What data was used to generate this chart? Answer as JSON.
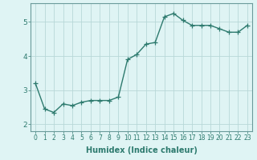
{
  "xlabel": "Humidex (Indice chaleur)",
  "ylabel": "",
  "x": [
    0,
    1,
    2,
    3,
    4,
    5,
    6,
    7,
    8,
    9,
    10,
    11,
    12,
    13,
    14,
    15,
    16,
    17,
    18,
    19,
    20,
    21,
    22,
    23
  ],
  "y": [
    3.2,
    2.45,
    2.35,
    2.6,
    2.55,
    2.65,
    2.7,
    2.7,
    2.7,
    2.8,
    3.9,
    4.05,
    4.35,
    4.4,
    5.15,
    5.25,
    5.05,
    4.9,
    4.9,
    4.9,
    4.8,
    4.7,
    4.7,
    4.9
  ],
  "line_color": "#2d7a6e",
  "marker": "+",
  "marker_size": 4,
  "line_width": 1.0,
  "background_color": "#dff4f4",
  "grid_color": "#b8d8d8",
  "spine_color": "#6a9a9a",
  "ylim": [
    1.8,
    5.55
  ],
  "xlim": [
    -0.5,
    23.5
  ],
  "yticks": [
    2,
    3,
    4,
    5
  ],
  "xticks": [
    0,
    1,
    2,
    3,
    4,
    5,
    6,
    7,
    8,
    9,
    10,
    11,
    12,
    13,
    14,
    15,
    16,
    17,
    18,
    19,
    20,
    21,
    22,
    23
  ],
  "tick_fontsize": 5.5,
  "xlabel_fontsize": 7,
  "ytick_fontsize": 6.5,
  "label_color": "#2d7a6e"
}
